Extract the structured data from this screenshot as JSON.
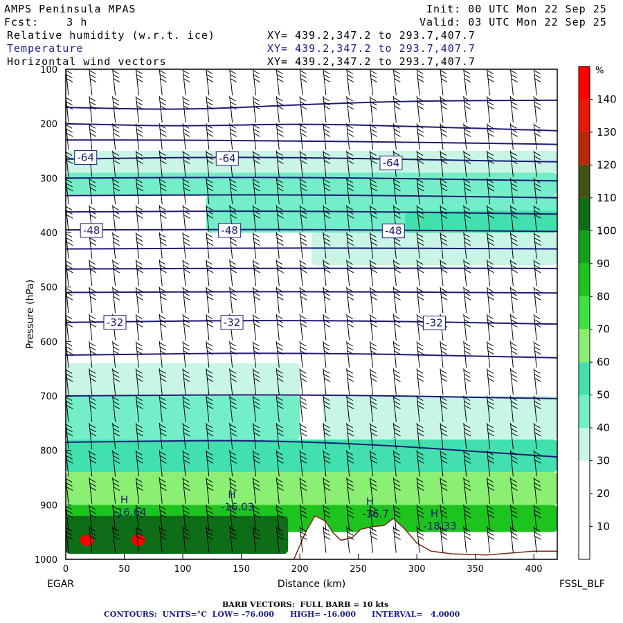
{
  "header": {
    "model": "AMPS Peninsula MPAS",
    "init": "Init: 00 UTC Mon 22 Sep 25",
    "fcst": "Fcst:    3 h",
    "valid": "Valid: 03 UTC Mon 22 Sep 25",
    "field1": "Relative humidity (w.r.t. ice)",
    "field2": "Temperature",
    "field3": "Horizontal wind vectors",
    "xy1": "XY= 439.2,347.2 to 293.7,407.7",
    "xy2": "XY= 439.2,347.2 to 293.7,407.7",
    "xy3": "XY= 439.2,347.2 to 293.7,407.7"
  },
  "footer": {
    "left_label": "EGAR",
    "right_label": "FSSL_BLF",
    "barb_note": "BARB VECTORS:  FULL BARB = 10 kts",
    "contours_note": "CONTOURS:  UNITS=°C  LOW= -76.000      HIGH= -16.000      INTERVAL=   4.0000"
  },
  "colors": {
    "temperature_contour": "#1b1b7a",
    "barb": "#000000",
    "terrain": "#ffffff"
  },
  "chart_data": {
    "type": "heatmap",
    "title": "Relative humidity (w.r.t. ice) / Temperature / Horizontal wind vectors",
    "xlabel": "Distance (km)",
    "ylabel": "Pressure (hPa)",
    "xlim": [
      0,
      420
    ],
    "ylim": [
      1000,
      100
    ],
    "xticks": [
      0,
      50,
      100,
      150,
      200,
      250,
      300,
      350,
      400
    ],
    "yticks": [
      100,
      200,
      300,
      400,
      500,
      600,
      700,
      800,
      900,
      1000
    ],
    "colorbar": {
      "unit": "%",
      "ticks": [
        10,
        20,
        30,
        40,
        50,
        60,
        70,
        80,
        90,
        100,
        110,
        120,
        130,
        140
      ],
      "bins": [
        {
          "from": 0,
          "to": 30,
          "color": "#ffffff"
        },
        {
          "from": 30,
          "to": 40,
          "color": "#c8f5e6"
        },
        {
          "from": 40,
          "to": 50,
          "color": "#73eec8"
        },
        {
          "from": 50,
          "to": 60,
          "color": "#41e0ae"
        },
        {
          "from": 60,
          "to": 70,
          "color": "#8aef72"
        },
        {
          "from": 70,
          "to": 80,
          "color": "#3ee23e"
        },
        {
          "from": 80,
          "to": 90,
          "color": "#1ec41e"
        },
        {
          "from": 90,
          "to": 100,
          "color": "#10a218"
        },
        {
          "from": 100,
          "to": 110,
          "color": "#0e6e18"
        },
        {
          "from": 110,
          "to": 120,
          "color": "#3f5410"
        },
        {
          "from": 120,
          "to": 130,
          "color": "#b82a08"
        },
        {
          "from": 130,
          "to": 140,
          "color": "#e61a08"
        },
        {
          "from": 140,
          "to": 150,
          "color": "#ff0000"
        }
      ]
    },
    "rh_bands": [
      {
        "p_top": 250,
        "p_bot": 290,
        "x_from": 0,
        "x_to": 420,
        "rh": 35
      },
      {
        "p_top": 290,
        "p_bot": 330,
        "x_from": 0,
        "x_to": 420,
        "rh": 45
      },
      {
        "p_top": 330,
        "p_bot": 400,
        "x_from": 120,
        "x_to": 420,
        "rh": 45
      },
      {
        "p_top": 360,
        "p_bot": 400,
        "x_from": 290,
        "x_to": 420,
        "rh": 55
      },
      {
        "p_top": 400,
        "p_bot": 460,
        "x_from": 210,
        "x_to": 420,
        "rh": 35
      },
      {
        "p_top": 640,
        "p_bot": 700,
        "x_from": 0,
        "x_to": 200,
        "rh": 35
      },
      {
        "p_top": 700,
        "p_bot": 780,
        "x_from": 0,
        "x_to": 200,
        "rh": 45
      },
      {
        "p_top": 700,
        "p_bot": 780,
        "x_from": 220,
        "x_to": 420,
        "rh": 35
      },
      {
        "p_top": 780,
        "p_bot": 840,
        "x_from": 0,
        "x_to": 420,
        "rh": 55
      },
      {
        "p_top": 840,
        "p_bot": 900,
        "x_from": 0,
        "x_to": 420,
        "rh": 65
      },
      {
        "p_top": 900,
        "p_bot": 950,
        "x_from": 0,
        "x_to": 420,
        "rh": 85
      },
      {
        "p_top": 920,
        "p_bot": 990,
        "x_from": 0,
        "x_to": 190,
        "rh": 105
      }
    ],
    "rh_max_spots": [
      {
        "x": 18,
        "p": 965,
        "rh": 145
      },
      {
        "x": 62,
        "p": 965,
        "rh": 145
      }
    ],
    "terrain_profile": [
      [
        0,
        1000
      ],
      [
        195,
        1000
      ],
      [
        205,
        950
      ],
      [
        213,
        920
      ],
      [
        222,
        930
      ],
      [
        228,
        950
      ],
      [
        235,
        965
      ],
      [
        245,
        960
      ],
      [
        252,
        945
      ],
      [
        262,
        940
      ],
      [
        272,
        938
      ],
      [
        280,
        925
      ],
      [
        290,
        945
      ],
      [
        300,
        970
      ],
      [
        312,
        985
      ],
      [
        330,
        990
      ],
      [
        360,
        992
      ],
      [
        400,
        985
      ],
      [
        420,
        985
      ]
    ],
    "temperature_isotherms": [
      {
        "value": -76,
        "points": [
          [
            0,
            170
          ],
          [
            100,
            175
          ],
          [
            200,
            165
          ],
          [
            300,
            158
          ],
          [
            420,
            157
          ]
        ]
      },
      {
        "value": -72,
        "points": [
          [
            0,
            200
          ],
          [
            100,
            205
          ],
          [
            200,
            200
          ],
          [
            300,
            205
          ],
          [
            420,
            213
          ]
        ]
      },
      {
        "value": -68,
        "points": [
          [
            0,
            230
          ],
          [
            100,
            230
          ],
          [
            200,
            232
          ],
          [
            300,
            234
          ],
          [
            420,
            238
          ]
        ]
      },
      {
        "value": -64,
        "points": [
          [
            0,
            265
          ],
          [
            100,
            262
          ],
          [
            200,
            262
          ],
          [
            300,
            266
          ],
          [
            420,
            270
          ]
        ]
      },
      {
        "value": -60,
        "points": [
          [
            0,
            300
          ],
          [
            200,
            298
          ],
          [
            420,
            305
          ]
        ]
      },
      {
        "value": -56,
        "points": [
          [
            0,
            332
          ],
          [
            200,
            330
          ],
          [
            420,
            336
          ]
        ]
      },
      {
        "value": -52,
        "points": [
          [
            0,
            362
          ],
          [
            200,
            360
          ],
          [
            420,
            366
          ]
        ]
      },
      {
        "value": -48,
        "points": [
          [
            0,
            395
          ],
          [
            200,
            394
          ],
          [
            420,
            398
          ]
        ]
      },
      {
        "value": -44,
        "points": [
          [
            0,
            430
          ],
          [
            200,
            428
          ],
          [
            420,
            430
          ]
        ]
      },
      {
        "value": -40,
        "points": [
          [
            0,
            467
          ],
          [
            200,
            465
          ],
          [
            420,
            466
          ]
        ]
      },
      {
        "value": -36,
        "points": [
          [
            0,
            510
          ],
          [
            200,
            508
          ],
          [
            420,
            511
          ]
        ]
      },
      {
        "value": -32,
        "points": [
          [
            0,
            565
          ],
          [
            200,
            560
          ],
          [
            420,
            568
          ]
        ]
      },
      {
        "value": -28,
        "points": [
          [
            0,
            625
          ],
          [
            200,
            620
          ],
          [
            420,
            630
          ]
        ]
      },
      {
        "value": -24,
        "points": [
          [
            0,
            700
          ],
          [
            200,
            697
          ],
          [
            420,
            705
          ]
        ]
      },
      {
        "value": -20,
        "points": [
          [
            0,
            785
          ],
          [
            200,
            780
          ],
          [
            420,
            812
          ]
        ]
      }
    ],
    "contour_labels": [
      {
        "text": "-64",
        "x": 17,
        "p": 262
      },
      {
        "text": "-64",
        "x": 138,
        "p": 264
      },
      {
        "text": "-64",
        "x": 278,
        "p": 272
      },
      {
        "text": "-48",
        "x": 22,
        "p": 396
      },
      {
        "text": "-48",
        "x": 140,
        "p": 396
      },
      {
        "text": "-48",
        "x": 280,
        "p": 397
      },
      {
        "text": "-32",
        "x": 42,
        "p": 565
      },
      {
        "text": "-32",
        "x": 142,
        "p": 565
      },
      {
        "text": "-32",
        "x": 315,
        "p": 566
      }
    ],
    "highs": [
      {
        "label": "H",
        "value": "-16.64",
        "x": 50,
        "p": 915
      },
      {
        "label": "H",
        "value": "-16.03",
        "x": 142,
        "p": 905
      },
      {
        "label": "H",
        "value": "-16.7",
        "x": 260,
        "p": 918
      },
      {
        "label": "H",
        "value": "-18.33",
        "x": 315,
        "p": 940
      }
    ],
    "wind_barb_columns_km": [
      0,
      20,
      40,
      60,
      80,
      100,
      120,
      140,
      160,
      180,
      200,
      220,
      240,
      260,
      280,
      300,
      320,
      340,
      360,
      380,
      400,
      420
    ],
    "wind_barb_levels_hPa": [
      130,
      180,
      230,
      280,
      330,
      380,
      430,
      480,
      530,
      580,
      630,
      680,
      730,
      780,
      830,
      880,
      930,
      970
    ]
  }
}
